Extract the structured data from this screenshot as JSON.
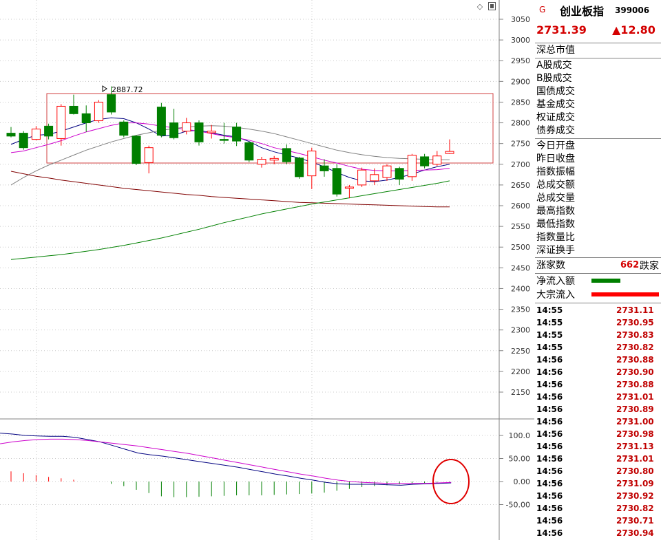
{
  "header": {
    "market_badge": "G",
    "index_name": "创业板指",
    "index_code": "399006",
    "price": "2731.39",
    "change": "▲12.80"
  },
  "info_labels": {
    "market_value": "深总市值",
    "group1": [
      "A股成交",
      "B股成交",
      "国债成交",
      "基金成交",
      "权证成交",
      "债券成交"
    ],
    "group2": [
      "今日开盘",
      "昨日收盘",
      "指数振幅",
      "总成交额",
      "总成交量",
      "最高指数",
      "最低指数",
      "指数量比",
      "深证换手"
    ]
  },
  "breadth": {
    "rise_label": "涨家数",
    "rise_count": "662",
    "fall_label": "跌家"
  },
  "flows": [
    {
      "label": "净流入额",
      "color": "#007f00"
    },
    {
      "label": "大宗流入",
      "color": "#ff0000"
    }
  ],
  "ticks": [
    {
      "time": "14:55",
      "price": "2731.11"
    },
    {
      "time": "14:55",
      "price": "2730.95"
    },
    {
      "time": "14:55",
      "price": "2730.83"
    },
    {
      "time": "14:55",
      "price": "2730.82"
    },
    {
      "time": "14:56",
      "price": "2730.88"
    },
    {
      "time": "14:56",
      "price": "2730.90"
    },
    {
      "time": "14:56",
      "price": "2730.88"
    },
    {
      "time": "14:56",
      "price": "2731.01"
    },
    {
      "time": "14:56",
      "price": "2730.89"
    },
    {
      "time": "14:56",
      "price": "2731.00"
    },
    {
      "time": "14:56",
      "price": "2730.98"
    },
    {
      "time": "14:56",
      "price": "2731.13"
    },
    {
      "time": "14:56",
      "price": "2731.01"
    },
    {
      "time": "14:56",
      "price": "2730.80"
    },
    {
      "time": "14:56",
      "price": "2731.09"
    },
    {
      "time": "14:56",
      "price": "2730.92"
    },
    {
      "time": "14:56",
      "price": "2730.82"
    },
    {
      "time": "14:56",
      "price": "2730.71"
    },
    {
      "time": "14:56",
      "price": "2730.94"
    }
  ],
  "colors": {
    "up": "#ff0000",
    "down": "#007f00",
    "text_red": "#d40000",
    "grid": "#c0c0c0"
  },
  "chart_data": [
    {
      "type": "candlestick",
      "title": "",
      "y_ticks": [
        3050,
        3000,
        2950,
        2900,
        2850,
        2800,
        2750,
        2700,
        2650,
        2600,
        2550,
        2500,
        2450,
        2400,
        2350,
        2300,
        2250,
        2200,
        2150
      ],
      "ylim": [
        2100,
        3075
      ],
      "annotation_high": "2887.72",
      "highlight_box_range": [
        2703,
        2870
      ],
      "candles": [
        {
          "o": 2775,
          "c": 2768,
          "h": 2790,
          "l": 2765
        },
        {
          "o": 2775,
          "c": 2740,
          "h": 2780,
          "l": 2735
        },
        {
          "o": 2760,
          "c": 2785,
          "h": 2792,
          "l": 2758
        },
        {
          "o": 2792,
          "c": 2768,
          "h": 2798,
          "l": 2760
        },
        {
          "o": 2762,
          "c": 2840,
          "h": 2845,
          "l": 2745
        },
        {
          "o": 2840,
          "c": 2822,
          "h": 2868,
          "l": 2820
        },
        {
          "o": 2822,
          "c": 2800,
          "h": 2842,
          "l": 2778
        },
        {
          "o": 2805,
          "c": 2850,
          "h": 2855,
          "l": 2800
        },
        {
          "o": 2868,
          "c": 2826,
          "h": 2888,
          "l": 2820
        },
        {
          "o": 2802,
          "c": 2770,
          "h": 2806,
          "l": 2765
        },
        {
          "o": 2768,
          "c": 2702,
          "h": 2770,
          "l": 2698
        },
        {
          "o": 2704,
          "c": 2740,
          "h": 2745,
          "l": 2678
        },
        {
          "o": 2838,
          "c": 2770,
          "h": 2848,
          "l": 2765
        },
        {
          "o": 2800,
          "c": 2764,
          "h": 2834,
          "l": 2760
        },
        {
          "o": 2780,
          "c": 2800,
          "h": 2812,
          "l": 2772
        },
        {
          "o": 2800,
          "c": 2754,
          "h": 2806,
          "l": 2745
        },
        {
          "o": 2776,
          "c": 2780,
          "h": 2795,
          "l": 2762
        },
        {
          "o": 2760,
          "c": 2758,
          "h": 2800,
          "l": 2750
        },
        {
          "o": 2790,
          "c": 2756,
          "h": 2800,
          "l": 2744
        },
        {
          "o": 2752,
          "c": 2710,
          "h": 2755,
          "l": 2705
        },
        {
          "o": 2700,
          "c": 2712,
          "h": 2718,
          "l": 2692
        },
        {
          "o": 2710,
          "c": 2714,
          "h": 2720,
          "l": 2700
        },
        {
          "o": 2738,
          "c": 2706,
          "h": 2748,
          "l": 2700
        },
        {
          "o": 2715,
          "c": 2670,
          "h": 2718,
          "l": 2665
        },
        {
          "o": 2672,
          "c": 2732,
          "h": 2740,
          "l": 2640
        },
        {
          "o": 2696,
          "c": 2684,
          "h": 2712,
          "l": 2670
        },
        {
          "o": 2690,
          "c": 2628,
          "h": 2700,
          "l": 2622
        },
        {
          "o": 2642,
          "c": 2645,
          "h": 2650,
          "l": 2618
        },
        {
          "o": 2650,
          "c": 2686,
          "h": 2692,
          "l": 2645
        },
        {
          "o": 2660,
          "c": 2675,
          "h": 2690,
          "l": 2650
        },
        {
          "o": 2668,
          "c": 2696,
          "h": 2700,
          "l": 2660
        },
        {
          "o": 2690,
          "c": 2664,
          "h": 2694,
          "l": 2650
        },
        {
          "o": 2670,
          "c": 2722,
          "h": 2725,
          "l": 2660
        },
        {
          "o": 2718,
          "c": 2696,
          "h": 2725,
          "l": 2690
        },
        {
          "o": 2700,
          "c": 2720,
          "h": 2732,
          "l": 2696
        },
        {
          "o": 2726,
          "c": 2731,
          "h": 2760,
          "l": 2725
        }
      ],
      "ma_series": [
        {
          "color": "#000080",
          "values": [
            2748,
            2760,
            2770,
            2772,
            2780,
            2790,
            2800,
            2808,
            2812,
            2810,
            2800,
            2785,
            2768,
            2770,
            2780,
            2782,
            2776,
            2770,
            2766,
            2755,
            2740,
            2730,
            2722,
            2715,
            2705,
            2694,
            2680,
            2668,
            2660,
            2658,
            2662,
            2668,
            2676,
            2686,
            2694,
            2700
          ]
        },
        {
          "color": "#cc00cc",
          "values": [
            2728,
            2732,
            2740,
            2748,
            2757,
            2768,
            2778,
            2786,
            2794,
            2800,
            2800,
            2797,
            2792,
            2788,
            2784,
            2780,
            2774,
            2768,
            2764,
            2758,
            2750,
            2740,
            2733,
            2726,
            2718,
            2710,
            2703,
            2695,
            2688,
            2685,
            2684,
            2684,
            2685,
            2686,
            2687,
            2690
          ]
        },
        {
          "color": "#808080",
          "values": [
            2650,
            2668,
            2684,
            2698,
            2710,
            2722,
            2734,
            2744,
            2754,
            2762,
            2770,
            2776,
            2782,
            2786,
            2790,
            2792,
            2793,
            2792,
            2789,
            2785,
            2780,
            2774,
            2766,
            2758,
            2750,
            2742,
            2734,
            2728,
            2723,
            2719,
            2716,
            2714,
            2713,
            2712,
            2711,
            2711
          ]
        },
        {
          "color": "#800000",
          "values": [
            2683,
            2677,
            2671,
            2667,
            2662,
            2658,
            2654,
            2650,
            2646,
            2642,
            2639,
            2636,
            2633,
            2630,
            2627,
            2625,
            2622,
            2620,
            2618,
            2616,
            2614,
            2612,
            2610,
            2608,
            2607,
            2606,
            2605,
            2604,
            2603,
            2602,
            2601,
            2600,
            2599,
            2598,
            2597,
            2597
          ]
        },
        {
          "color": "#008000",
          "values": [
            2470,
            2473,
            2476,
            2479,
            2482,
            2486,
            2490,
            2494,
            2499,
            2504,
            2510,
            2516,
            2522,
            2529,
            2536,
            2543,
            2551,
            2559,
            2566,
            2573,
            2580,
            2586,
            2592,
            2598,
            2604,
            2609,
            2614,
            2619,
            2624,
            2629,
            2634,
            2639,
            2644,
            2649,
            2654,
            2660
          ]
        }
      ]
    },
    {
      "type": "line",
      "title": "",
      "y_ticks": [
        100.0,
        50.0,
        0.0,
        -50.0
      ],
      "y_tick_labels": [
        "100.0",
        "50.00",
        "0.00",
        "-50.00"
      ],
      "ylim": [
        -110,
        135
      ],
      "series": [
        {
          "color": "#000080",
          "values": [
            105,
            103,
            100,
            99,
            98,
            98,
            96,
            91,
            86,
            78,
            70,
            62,
            58,
            55,
            51,
            47,
            43,
            39,
            35,
            31,
            26,
            21,
            16,
            12,
            7,
            3,
            -2,
            -5,
            -6,
            -6,
            -6,
            -7,
            -8,
            -6,
            -5,
            -4,
            -3
          ]
        },
        {
          "color": "#cc00cc",
          "values": [
            82,
            86,
            89,
            91,
            92,
            92,
            91,
            89,
            86,
            83,
            80,
            77,
            73,
            69,
            65,
            61,
            56,
            51,
            46,
            41,
            36,
            31,
            26,
            21,
            16,
            12,
            7,
            3,
            0,
            -2,
            -3,
            -4,
            -4,
            -4,
            -4,
            -3,
            -2
          ]
        }
      ],
      "histogram": [
        22,
        18,
        14,
        10,
        7,
        4,
        0,
        0,
        -5,
        -10,
        -18,
        -25,
        -32,
        -34,
        -34,
        -33,
        -32,
        -31,
        -30,
        -30,
        -30,
        -29,
        -28,
        -27,
        -26,
        -24,
        -20,
        -16,
        -12,
        -10,
        -8,
        -6,
        -4,
        -3,
        -2,
        -1,
        0
      ]
    }
  ]
}
